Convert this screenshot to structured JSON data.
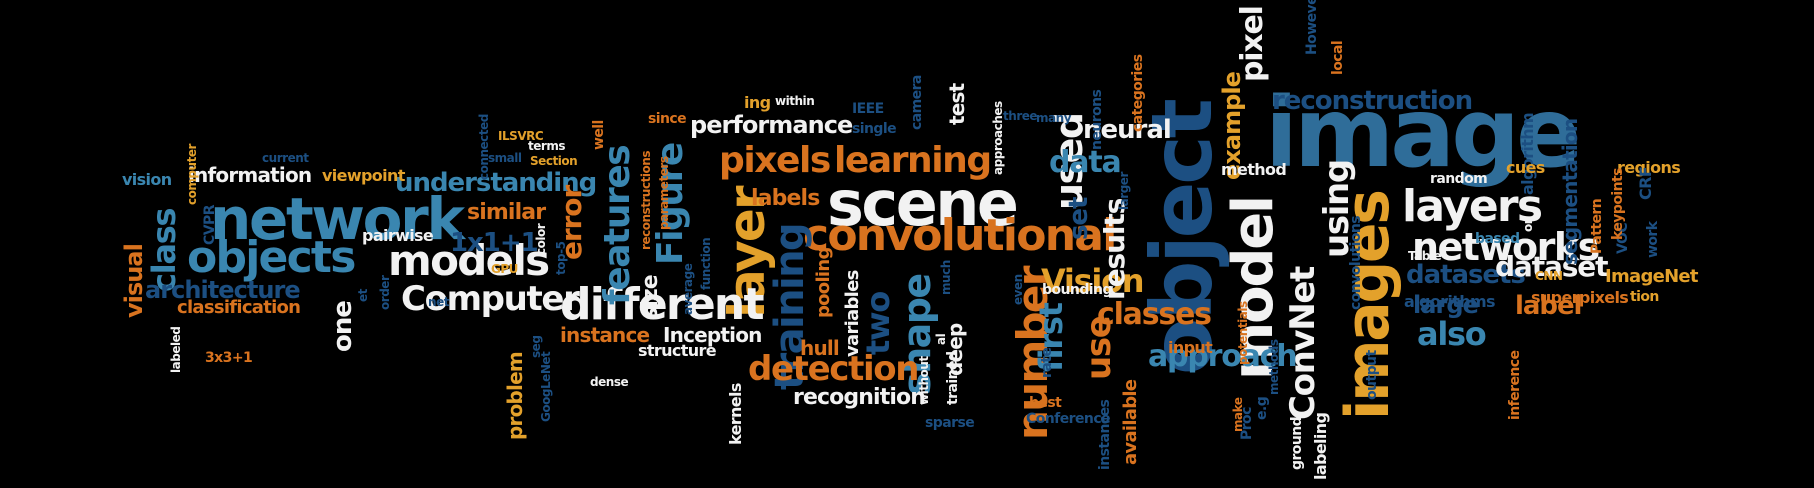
{
  "background": "#000000",
  "palette": {
    "white": "#f2f2f2",
    "orange": "#d9731f",
    "gold": "#e3a12b",
    "blue": "#3a86b0",
    "navy": "#1c4f82",
    "steel": "#2f6d99"
  },
  "words": [
    {
      "text": "image",
      "color": "steel"
    },
    {
      "text": "object",
      "color": "navy"
    },
    {
      "text": "scene",
      "color": "white"
    },
    {
      "text": "images",
      "color": "gold"
    },
    {
      "text": "model",
      "color": "white"
    },
    {
      "text": "network",
      "color": "blue"
    },
    {
      "text": "convolutional",
      "color": "orange"
    },
    {
      "text": "layer",
      "color": "gold"
    },
    {
      "text": "different",
      "color": "white"
    },
    {
      "text": "number",
      "color": "orange"
    },
    {
      "text": "objects",
      "color": "blue"
    },
    {
      "text": "models",
      "color": "white"
    },
    {
      "text": "training",
      "color": "navy"
    },
    {
      "text": "layers",
      "color": "white"
    },
    {
      "text": "networks",
      "color": "white"
    },
    {
      "text": "shape",
      "color": "blue"
    },
    {
      "text": "pixels",
      "color": "orange"
    },
    {
      "text": "learning",
      "color": "orange"
    },
    {
      "text": "used",
      "color": "white"
    },
    {
      "text": "Computer",
      "color": "white"
    },
    {
      "text": "detection",
      "color": "orange"
    },
    {
      "text": "features",
      "color": "blue"
    },
    {
      "text": "Figure",
      "color": "blue"
    },
    {
      "text": "ConvNet",
      "color": "white"
    },
    {
      "text": "using",
      "color": "white"
    },
    {
      "text": "reconstruction",
      "color": "navy"
    },
    {
      "text": "pixel",
      "color": "white"
    },
    {
      "text": "class",
      "color": "blue"
    },
    {
      "text": "classes",
      "color": "orange"
    },
    {
      "text": "use",
      "color": "orange"
    },
    {
      "text": "Vision",
      "color": "gold"
    },
    {
      "text": "approach",
      "color": "blue"
    },
    {
      "text": "first",
      "color": "blue"
    },
    {
      "text": "datasets",
      "color": "navy"
    },
    {
      "text": "dataset",
      "color": "white"
    },
    {
      "text": "also",
      "color": "blue"
    },
    {
      "text": "large",
      "color": "navy"
    },
    {
      "text": "results",
      "color": "white"
    },
    {
      "text": "data",
      "color": "blue"
    },
    {
      "text": "example",
      "color": "gold"
    },
    {
      "text": "understanding",
      "color": "blue"
    },
    {
      "text": "performance",
      "color": "white"
    },
    {
      "text": "architecture",
      "color": "navy"
    },
    {
      "text": "neural",
      "color": "white"
    },
    {
      "text": "label",
      "color": "orange"
    },
    {
      "text": "segmentation",
      "color": "navy"
    },
    {
      "text": "two",
      "color": "navy"
    },
    {
      "text": "set",
      "color": "navy"
    },
    {
      "text": "error",
      "color": "orange"
    },
    {
      "text": "recognition",
      "color": "white"
    },
    {
      "text": "1x1+1",
      "color": "navy"
    },
    {
      "text": "one",
      "color": "white"
    },
    {
      "text": "similar",
      "color": "orange"
    },
    {
      "text": "information",
      "color": "white"
    },
    {
      "text": "visual",
      "color": "orange"
    },
    {
      "text": "size",
      "color": "white"
    },
    {
      "text": "labels",
      "color": "orange"
    },
    {
      "text": "Inception",
      "color": "white"
    },
    {
      "text": "instance",
      "color": "orange"
    },
    {
      "text": "classification",
      "color": "orange"
    },
    {
      "text": "test",
      "color": "white"
    },
    {
      "text": "hull",
      "color": "orange"
    },
    {
      "text": "variables",
      "color": "white"
    },
    {
      "text": "available",
      "color": "orange"
    },
    {
      "text": "deep",
      "color": "white"
    },
    {
      "text": "ImageNet",
      "color": "gold"
    },
    {
      "text": "algorithms",
      "color": "navy"
    },
    {
      "text": "superpixels",
      "color": "orange"
    },
    {
      "text": "input",
      "color": "orange"
    },
    {
      "text": "pooling",
      "color": "orange"
    },
    {
      "text": "problem",
      "color": "gold"
    },
    {
      "text": "structure",
      "color": "white"
    },
    {
      "text": "kernels",
      "color": "white"
    },
    {
      "text": "pairwise",
      "color": "white"
    },
    {
      "text": "vision",
      "color": "blue"
    },
    {
      "text": "viewpoint",
      "color": "gold"
    },
    {
      "text": "regions",
      "color": "gold"
    },
    {
      "text": "method",
      "color": "white"
    },
    {
      "text": "algorithm",
      "color": "navy"
    },
    {
      "text": "labeling",
      "color": "white"
    },
    {
      "text": "ground",
      "color": "white"
    },
    {
      "text": "Proc",
      "color": "navy"
    },
    {
      "text": "methods",
      "color": "navy"
    },
    {
      "text": "CRF",
      "color": "navy"
    },
    {
      "text": "VOC",
      "color": "navy"
    },
    {
      "text": "Pattern",
      "color": "orange"
    },
    {
      "text": "keypoints",
      "color": "orange"
    },
    {
      "text": "work",
      "color": "navy"
    },
    {
      "text": "tion",
      "color": "gold"
    },
    {
      "text": "inference",
      "color": "orange"
    },
    {
      "text": "CNN",
      "color": "gold"
    },
    {
      "text": "Table",
      "color": "white"
    },
    {
      "text": "based",
      "color": "blue"
    },
    {
      "text": "on",
      "color": "white"
    },
    {
      "text": "random",
      "color": "white"
    },
    {
      "text": "cues",
      "color": "gold"
    },
    {
      "text": "However",
      "color": "navy"
    },
    {
      "text": "local",
      "color": "orange"
    },
    {
      "text": "categories",
      "color": "orange"
    },
    {
      "text": "neurons",
      "color": "navy"
    },
    {
      "text": "larger",
      "color": "navy"
    },
    {
      "text": "many",
      "color": "navy"
    },
    {
      "text": "three",
      "color": "navy"
    },
    {
      "text": "approaches",
      "color": "white"
    },
    {
      "text": "camera",
      "color": "navy"
    },
    {
      "text": "IEEE",
      "color": "navy"
    },
    {
      "text": "single",
      "color": "navy"
    },
    {
      "text": "within",
      "color": "white"
    },
    {
      "text": "ing",
      "color": "gold"
    },
    {
      "text": "since",
      "color": "orange"
    },
    {
      "text": "terms",
      "color": "white"
    },
    {
      "text": "Section",
      "color": "gold"
    },
    {
      "text": "well",
      "color": "orange"
    },
    {
      "text": "small",
      "color": "navy"
    },
    {
      "text": "connected",
      "color": "navy"
    },
    {
      "text": "ILSVRC",
      "color": "gold"
    },
    {
      "text": "current",
      "color": "navy"
    },
    {
      "text": "computer",
      "color": "gold"
    },
    {
      "text": "CVPR",
      "color": "navy"
    },
    {
      "text": "reconstructions",
      "color": "orange"
    },
    {
      "text": "parameters",
      "color": "orange"
    },
    {
      "text": "function",
      "color": "navy"
    },
    {
      "text": "average",
      "color": "navy"
    },
    {
      "text": "GPU",
      "color": "gold"
    },
    {
      "text": "color",
      "color": "white"
    },
    {
      "text": "top-5",
      "color": "navy"
    },
    {
      "text": "seg",
      "color": "navy"
    },
    {
      "text": "GoogLeNet",
      "color": "navy"
    },
    {
      "text": "dense",
      "color": "white"
    },
    {
      "text": "order",
      "color": "navy"
    },
    {
      "text": "net",
      "color": "navy"
    },
    {
      "text": "et",
      "color": "navy"
    },
    {
      "text": "3x3+1",
      "color": "orange"
    },
    {
      "text": "labeled",
      "color": "white"
    },
    {
      "text": "without",
      "color": "white"
    },
    {
      "text": "al",
      "color": "white"
    },
    {
      "text": "much",
      "color": "navy"
    },
    {
      "text": "trained",
      "color": "white"
    },
    {
      "text": "sparse",
      "color": "navy"
    },
    {
      "text": "even",
      "color": "navy"
    },
    {
      "text": "rate",
      "color": "navy"
    },
    {
      "text": "best",
      "color": "orange"
    },
    {
      "text": "Conference",
      "color": "navy"
    },
    {
      "text": "bounding",
      "color": "white"
    },
    {
      "text": "instances",
      "color": "navy"
    },
    {
      "text": "make",
      "color": "orange"
    },
    {
      "text": "e.g",
      "color": "navy"
    },
    {
      "text": "potentials",
      "color": "orange"
    },
    {
      "text": "convolutions",
      "color": "navy"
    },
    {
      "text": "output",
      "color": "navy"
    }
  ]
}
